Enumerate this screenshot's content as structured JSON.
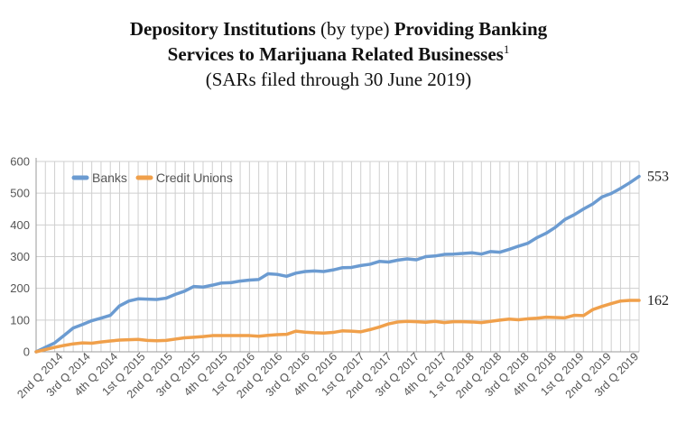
{
  "title": {
    "part1_bold": "Depository Institutions",
    "part2": " (by type) ",
    "part3_bold": "Providing Banking",
    "line2_bold": "Services to Marijuana Related Businesses",
    "footnote": "1",
    "line3": "(SARs filed through 30 June 2019)"
  },
  "colors": {
    "banks": "#6b9bd1",
    "credit_unions": "#f0a04b",
    "grid": "#cfcfcf",
    "axis": "#9a9a9a"
  },
  "chart_data": {
    "type": "line",
    "ylim": [
      0,
      600
    ],
    "yticks": [
      0,
      100,
      200,
      300,
      400,
      500,
      600
    ],
    "xtick_labels": [
      "2nd Q 2014",
      "3rd Q 2014",
      "4th Q 2014",
      "1st Q 2015",
      "2nd Q 2015",
      "3rd Q 2015",
      "4th Q 2015",
      "1st Q 2016",
      "2nd Q 2016",
      "3rd Q 2016",
      "4th Q 2016",
      "1st Q 2017",
      "2nd Q 2017",
      "3rd Q 2017",
      "4th Q 2017",
      "1 st Q 2018",
      "2nd Q 2018",
      "3rd Q 2018",
      "4th Q 2018",
      "1st Q 2019",
      "2nd Q 2019",
      "3rd Q 2019"
    ],
    "legend_position": "top-left",
    "series": [
      {
        "name": "Banks",
        "end_label": "553",
        "values": [
          0,
          14,
          28,
          51,
          75,
          86,
          98,
          106,
          115,
          145,
          160,
          167,
          166,
          165,
          169,
          181,
          191,
          206,
          204,
          210,
          217,
          218,
          223,
          226,
          228,
          246,
          244,
          238,
          248,
          253,
          255,
          253,
          258,
          265,
          266,
          272,
          276,
          285,
          283,
          289,
          293,
          290,
          300,
          302,
          307,
          308,
          310,
          312,
          308,
          316,
          314,
          323,
          333,
          342,
          360,
          374,
          393,
          417,
          432,
          450,
          466,
          488,
          499,
          515,
          533,
          553
        ]
      },
      {
        "name": "Credit Unions",
        "end_label": "162",
        "values": [
          0,
          7,
          14,
          20,
          25,
          28,
          27,
          31,
          34,
          37,
          38,
          39,
          36,
          35,
          36,
          40,
          44,
          46,
          48,
          51,
          51,
          51,
          51,
          51,
          49,
          52,
          54,
          55,
          65,
          62,
          60,
          59,
          61,
          66,
          65,
          63,
          70,
          78,
          88,
          94,
          96,
          95,
          93,
          96,
          92,
          95,
          95,
          94,
          92,
          96,
          100,
          103,
          101,
          104,
          106,
          109,
          108,
          107,
          115,
          114,
          133,
          143,
          152,
          160,
          162,
          162
        ]
      }
    ]
  }
}
